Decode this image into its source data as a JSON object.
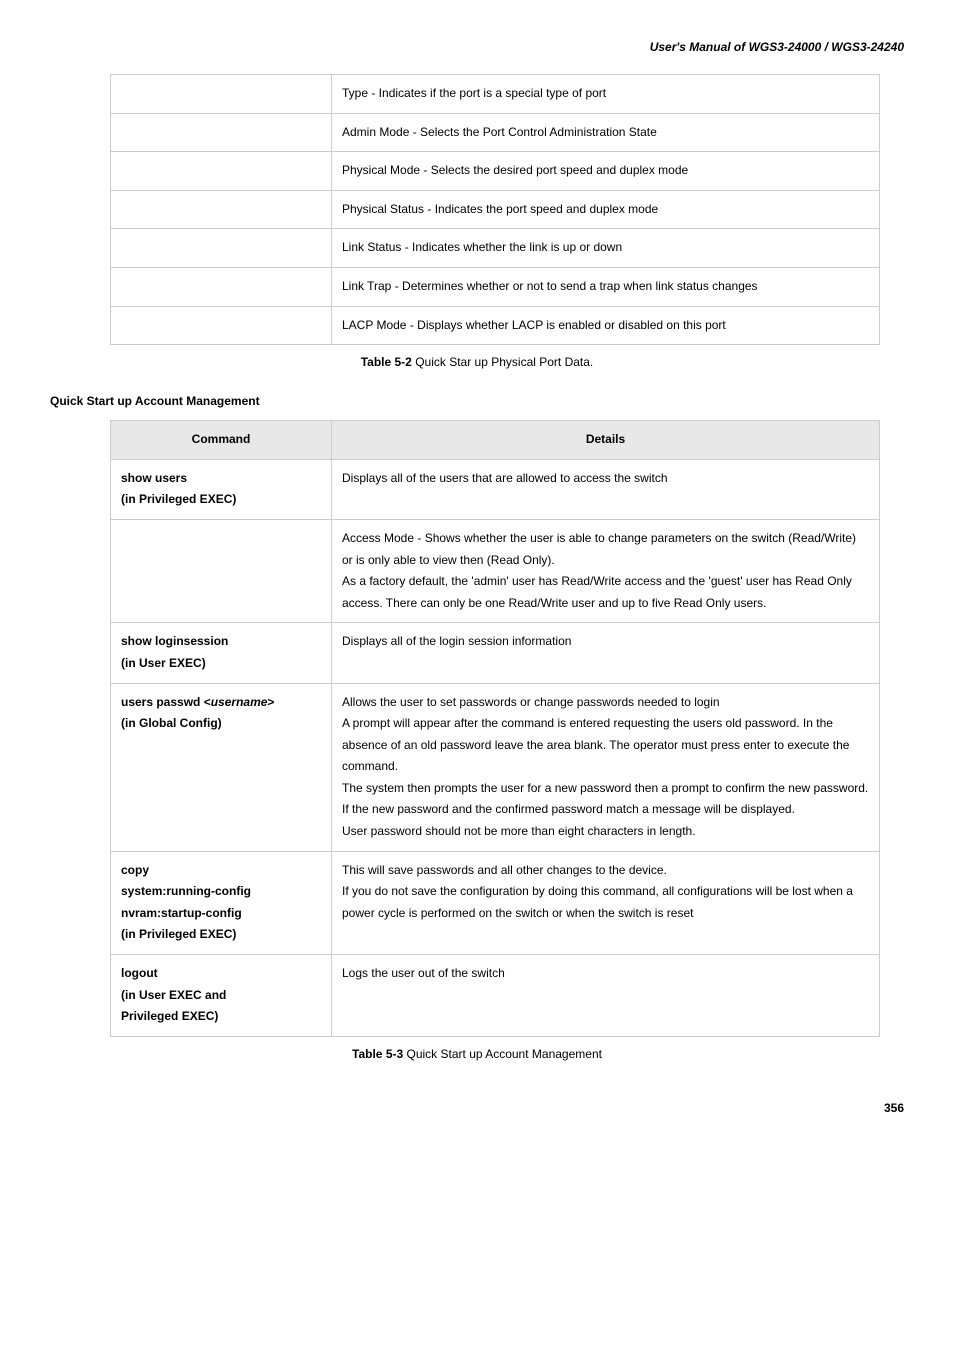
{
  "header": {
    "manual_title": "User's Manual of WGS3-24000 / WGS3-24240"
  },
  "table1": {
    "rows": [
      {
        "desc": "Type - Indicates if the port is a special type of port"
      },
      {
        "desc": "Admin Mode - Selects the Port Control Administration State"
      },
      {
        "desc": "Physical Mode - Selects the desired port speed and duplex mode"
      },
      {
        "desc": "Physical Status - Indicates the port speed and duplex mode"
      },
      {
        "desc": "Link Status - Indicates whether the link is up or down"
      },
      {
        "desc": "Link Trap - Determines whether or not to send a trap when link status changes"
      },
      {
        "desc": "LACP Mode - Displays whether LACP is enabled or disabled on this port"
      }
    ],
    "caption_label": "Table 5-2",
    "caption_text": " Quick Star up Physical Port Data."
  },
  "section2": {
    "heading": "Quick Start up Account Management"
  },
  "table2": {
    "header_col1": "Command",
    "header_col2": "Details",
    "rows": [
      {
        "cmd_line1": "show users",
        "cmd_line2": "(in Privileged EXEC)",
        "desc": "Displays all of the users that are allowed to access the switch"
      },
      {
        "cmd": "",
        "desc": "Access Mode - Shows whether the user is able to change parameters on the switch (Read/Write) or is only able to view then (Read Only).\nAs a factory default, the 'admin' user has Read/Write access and the 'guest' user has Read Only access. There can only be one Read/Write user and up to five Read Only users."
      },
      {
        "cmd_line1": "show loginsession",
        "cmd_line2": "(in User EXEC)",
        "desc": "Displays all of the login session information"
      },
      {
        "cmd_prefix": "users passwd <",
        "cmd_italic": "username",
        "cmd_suffix": ">",
        "cmd_line2": "(in Global Config)",
        "desc": "Allows the user to set passwords or change passwords needed to login\nA prompt will appear after the command is entered requesting the users old password. In the absence of an old password leave the area blank. The operator must press enter to execute the command.\nThe system then prompts the user for a new password then a prompt to confirm the new password. If the new password and the confirmed password match a message will be displayed.\nUser password should not be more than eight characters in length."
      },
      {
        "cmd_line1": "copy",
        "cmd_line2": "system:running-config",
        "cmd_line3": "nvram:startup-config",
        "cmd_line4": "(in Privileged EXEC)",
        "desc": "This will save passwords and all other changes to the device.\nIf you do not save the configuration by doing this command, all configurations will be lost when a power cycle is performed on the switch or when the switch is reset"
      },
      {
        "cmd_line1": "logout",
        "cmd_line2": "(in User EXEC and",
        "cmd_line3": "Privileged EXEC)",
        "desc": "Logs the user out of the switch"
      }
    ],
    "caption_label": "Table 5-3",
    "caption_text": " Quick Start up Account Management"
  },
  "page_number": "356"
}
